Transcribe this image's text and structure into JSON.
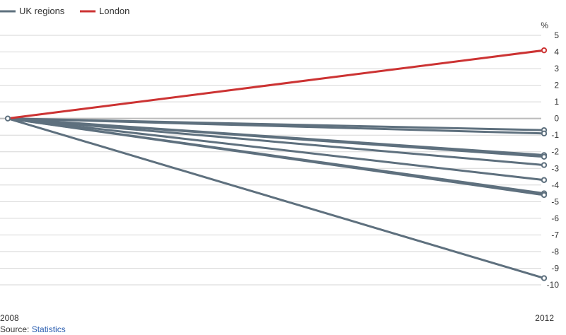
{
  "chart_data": {
    "type": "line",
    "x": [
      "2008",
      "2012"
    ],
    "y_unit": "%",
    "ylim": [
      -10,
      5
    ],
    "y_ticks": [
      5,
      4,
      3,
      2,
      1,
      0,
      -1,
      -2,
      -3,
      -4,
      -5,
      -6,
      -7,
      -8,
      -9,
      -10
    ],
    "grid": true,
    "legend_position": "top-left",
    "legend": [
      {
        "label": "UK regions",
        "color": "#5e707e"
      },
      {
        "label": "London",
        "color": "#cc3333"
      }
    ],
    "series": [
      {
        "name": "London",
        "group": "London",
        "values": [
          0,
          4.1
        ]
      },
      {
        "group": "UK regions",
        "values": [
          0,
          -0.7
        ]
      },
      {
        "group": "UK regions",
        "values": [
          0,
          -0.9
        ]
      },
      {
        "group": "UK regions",
        "values": [
          0,
          -2.2
        ]
      },
      {
        "group": "UK regions",
        "values": [
          0,
          -2.3
        ]
      },
      {
        "group": "UK regions",
        "values": [
          0,
          -2.8
        ]
      },
      {
        "group": "UK regions",
        "values": [
          0,
          -3.7
        ]
      },
      {
        "group": "UK regions",
        "values": [
          0,
          -4.5
        ]
      },
      {
        "group": "UK regions",
        "values": [
          0,
          -4.6
        ]
      },
      {
        "group": "UK regions",
        "values": [
          0,
          -9.6
        ]
      }
    ]
  },
  "source": {
    "prefix": "Source: ",
    "link": "Statistics"
  },
  "colors": {
    "grid": "#d6d6d6",
    "zero_line": "#bbbbbb",
    "regions": "#5e707e",
    "london": "#cc3333"
  }
}
